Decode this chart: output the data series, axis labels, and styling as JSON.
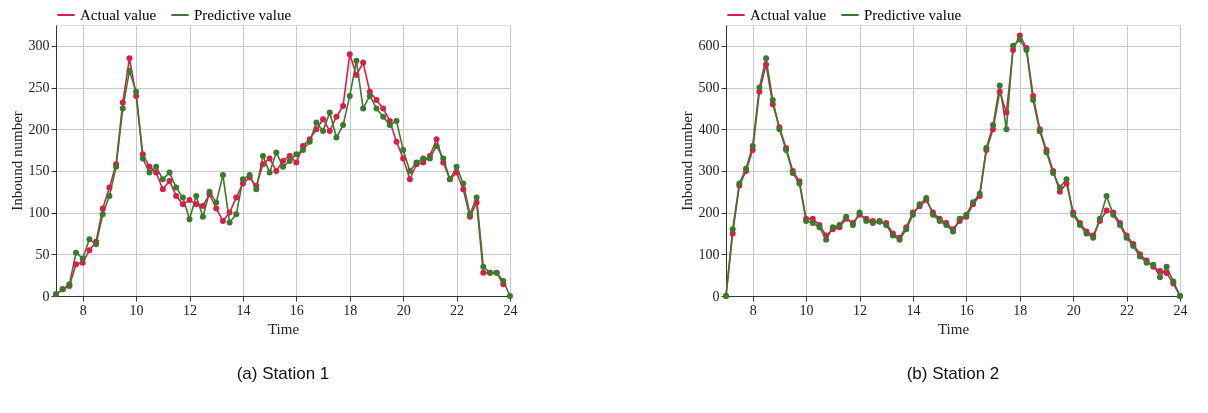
{
  "chart_data": [
    {
      "type": "line",
      "title": "(a) Station 1",
      "xlabel": "Time",
      "ylabel": "Inbound number",
      "xlim": [
        7,
        24
      ],
      "xticks": [
        8,
        10,
        12,
        14,
        16,
        18,
        20,
        22,
        24
      ],
      "ylim": [
        0,
        325
      ],
      "yticks": [
        0,
        50,
        100,
        150,
        200,
        250,
        300
      ],
      "grid": true,
      "legend": "top",
      "marker": "circle",
      "x": [
        7,
        7.25,
        7.5,
        7.75,
        8,
        8.25,
        8.5,
        8.75,
        9,
        9.25,
        9.5,
        9.75,
        10,
        10.25,
        10.5,
        10.75,
        11,
        11.25,
        11.5,
        11.75,
        12,
        12.25,
        12.5,
        12.75,
        13,
        13.25,
        13.5,
        13.75,
        14,
        14.25,
        14.5,
        14.75,
        15,
        15.25,
        15.5,
        15.75,
        16,
        16.25,
        16.5,
        16.75,
        17,
        17.25,
        17.5,
        17.75,
        18,
        18.25,
        18.5,
        18.75,
        19,
        19.25,
        19.5,
        19.75,
        20,
        20.25,
        20.5,
        20.75,
        21,
        21.25,
        21.5,
        21.75,
        22,
        22.25,
        22.5,
        22.75,
        23,
        23.25,
        23.5,
        23.75,
        24
      ],
      "series": [
        {
          "name": "Actual value",
          "color": "#d6204a",
          "values": [
            2,
            8,
            12,
            38,
            40,
            55,
            65,
            105,
            130,
            158,
            232,
            285,
            240,
            170,
            155,
            148,
            128,
            138,
            120,
            110,
            115,
            110,
            108,
            122,
            105,
            90,
            100,
            118,
            135,
            142,
            132,
            158,
            165,
            150,
            162,
            168,
            160,
            180,
            188,
            200,
            212,
            198,
            215,
            228,
            290,
            265,
            280,
            245,
            235,
            225,
            210,
            185,
            165,
            140,
            158,
            160,
            168,
            188,
            160,
            140,
            148,
            128,
            95,
            112,
            28,
            28,
            28,
            14,
            null
          ]
        },
        {
          "name": "Predictive value",
          "color": "#3a7a2c",
          "values": [
            2,
            8,
            14,
            52,
            45,
            68,
            62,
            98,
            120,
            155,
            225,
            270,
            245,
            165,
            148,
            155,
            140,
            148,
            130,
            118,
            92,
            120,
            95,
            125,
            112,
            145,
            88,
            98,
            140,
            145,
            128,
            168,
            148,
            172,
            155,
            162,
            170,
            175,
            185,
            208,
            198,
            220,
            190,
            205,
            240,
            282,
            225,
            240,
            225,
            215,
            205,
            210,
            175,
            150,
            160,
            165,
            165,
            180,
            165,
            140,
            155,
            135,
            98,
            118,
            35,
            28,
            28,
            18,
            0
          ]
        }
      ]
    },
    {
      "type": "line",
      "title": "(b) Station 2",
      "xlabel": "Time",
      "ylabel": "Inbound number",
      "xlim": [
        7,
        24
      ],
      "xticks": [
        8,
        10,
        12,
        14,
        16,
        18,
        20,
        22,
        24
      ],
      "ylim": [
        0,
        650
      ],
      "yticks": [
        0,
        100,
        200,
        300,
        400,
        500,
        600
      ],
      "grid": true,
      "legend": "top",
      "marker": "circle",
      "x": [
        7,
        7.25,
        7.5,
        7.75,
        8,
        8.25,
        8.5,
        8.75,
        9,
        9.25,
        9.5,
        9.75,
        10,
        10.25,
        10.5,
        10.75,
        11,
        11.25,
        11.5,
        11.75,
        12,
        12.25,
        12.5,
        12.75,
        13,
        13.25,
        13.5,
        13.75,
        14,
        14.25,
        14.5,
        14.75,
        15,
        15.25,
        15.5,
        15.75,
        16,
        16.25,
        16.5,
        16.75,
        17,
        17.25,
        17.5,
        17.75,
        18,
        18.25,
        18.5,
        18.75,
        19,
        19.25,
        19.5,
        19.75,
        20,
        20.25,
        20.5,
        20.75,
        21,
        21.25,
        21.5,
        21.75,
        22,
        22.25,
        22.5,
        22.75,
        23,
        23.25,
        23.5,
        23.75,
        24
      ],
      "series": [
        {
          "name": "Actual value",
          "color": "#d6204a",
          "values": [
            0,
            150,
            265,
            300,
            350,
            490,
            555,
            460,
            405,
            355,
            300,
            275,
            185,
            185,
            170,
            145,
            160,
            165,
            185,
            175,
            195,
            185,
            180,
            178,
            175,
            150,
            140,
            165,
            200,
            215,
            230,
            200,
            185,
            175,
            160,
            180,
            190,
            220,
            240,
            350,
            400,
            490,
            440,
            590,
            625,
            595,
            480,
            400,
            350,
            300,
            250,
            270,
            200,
            175,
            155,
            145,
            180,
            205,
            200,
            175,
            145,
            125,
            100,
            85,
            70,
            60,
            55,
            30,
            0
          ]
        },
        {
          "name": "Predictive value",
          "color": "#3a7a2c",
          "values": [
            0,
            160,
            270,
            305,
            360,
            500,
            570,
            470,
            400,
            350,
            295,
            270,
            180,
            175,
            165,
            135,
            165,
            170,
            190,
            170,
            200,
            180,
            175,
            180,
            170,
            145,
            135,
            160,
            195,
            220,
            235,
            195,
            180,
            170,
            155,
            185,
            195,
            225,
            245,
            355,
            410,
            505,
            400,
            600,
            615,
            590,
            470,
            395,
            345,
            295,
            260,
            280,
            195,
            170,
            150,
            140,
            185,
            240,
            195,
            170,
            140,
            120,
            95,
            80,
            75,
            45,
            70,
            35,
            0
          ]
        }
      ]
    }
  ]
}
